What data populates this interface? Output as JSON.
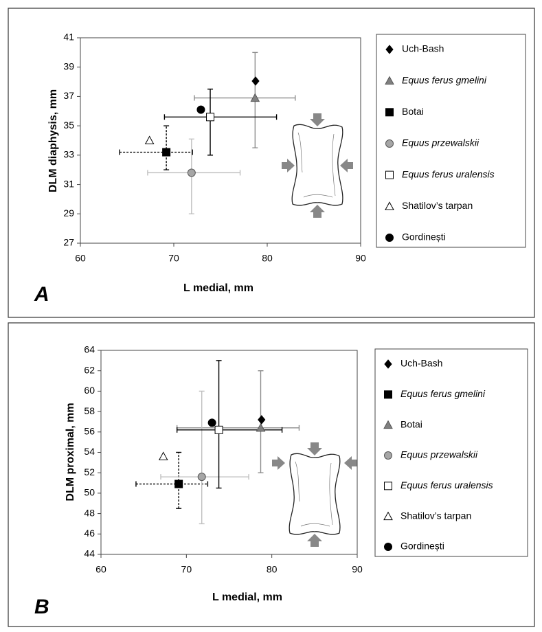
{
  "chart_data": [
    {
      "type": "scatter",
      "panel_label": "A",
      "xlabel": "L medial, mm",
      "ylabel": "DLM diaphysis, mm",
      "xlim": [
        60,
        90
      ],
      "xticks": [
        60,
        70,
        80,
        90
      ],
      "ylim": [
        27,
        41
      ],
      "yticks": [
        27,
        29,
        31,
        33,
        35,
        37,
        39,
        41
      ],
      "series": [
        {
          "name": "Uch-Bash",
          "marker": "diamond",
          "color": "#000000",
          "x": [
            78.75
          ],
          "values": [
            38.05
          ]
        },
        {
          "name": "Equus ferus gmelini",
          "italic": true,
          "marker": "triangle",
          "color": "#808080",
          "x": [
            78.7
          ],
          "values": [
            36.9
          ],
          "x_range": [
            72.2,
            83.0
          ],
          "y_range": [
            33.5,
            40.0
          ],
          "error_color": "#8c8c8c"
        },
        {
          "name": "Botai",
          "marker": "square",
          "color": "#000000",
          "x": [
            69.2
          ],
          "values": [
            33.2
          ],
          "x_range": [
            64.2,
            72.0
          ],
          "y_range": [
            32.0,
            35.0
          ],
          "error_color": "#000000",
          "error_dash": true
        },
        {
          "name": "Equus przewalskii",
          "italic": true,
          "marker": "circle",
          "color": "#a6a6a6",
          "x": [
            71.9
          ],
          "values": [
            31.8
          ],
          "x_range": [
            67.2,
            77.1
          ],
          "y_range": [
            29.0,
            34.1
          ],
          "error_color": "#bfbfbf"
        },
        {
          "name": "Equus ferus uralensis",
          "italic": true,
          "marker": "square",
          "color": "#ffffff",
          "x": [
            73.9
          ],
          "values": [
            35.6
          ],
          "x_range": [
            69.0,
            81.0
          ],
          "y_range": [
            33.0,
            37.5
          ],
          "error_color": "#000000"
        },
        {
          "name": "Shatilov’s tarpan",
          "marker": "triangle",
          "color": "#ffffff",
          "x": [
            67.4
          ],
          "values": [
            34.0
          ]
        },
        {
          "name": "Gordinești",
          "marker": "circle",
          "color": "#000000",
          "x": [
            72.9
          ],
          "values": [
            36.1
          ]
        }
      ]
    },
    {
      "type": "scatter",
      "panel_label": "B",
      "xlabel": "L medial, mm",
      "ylabel": "DLM proximal, mm",
      "xlim": [
        60,
        90
      ],
      "xticks": [
        60,
        70,
        80,
        90
      ],
      "ylim": [
        44,
        64
      ],
      "yticks": [
        44,
        46,
        48,
        50,
        52,
        54,
        56,
        58,
        60,
        62,
        64
      ],
      "series": [
        {
          "name": "Uch-Bash",
          "marker": "diamond",
          "color": "#000000",
          "x": [
            78.8
          ],
          "values": [
            57.2
          ]
        },
        {
          "name": "Equus ferus gmelini",
          "italic": true,
          "marker": "square",
          "color": "#000000",
          "x": [
            69.1
          ],
          "values": [
            50.9
          ],
          "x_range": [
            64.1,
            72.5
          ],
          "y_range": [
            48.5,
            54.0
          ],
          "error_color": "#000000",
          "error_dash": true
        },
        {
          "name": "Botai",
          "marker": "triangle",
          "color": "#808080",
          "x": [
            78.7
          ],
          "values": [
            56.4
          ],
          "x_range": [
            68.9,
            83.2
          ],
          "y_range": [
            52.0,
            62.0
          ],
          "error_color": "#8c8c8c"
        },
        {
          "name": "Equus przewalskii",
          "italic": true,
          "marker": "circle",
          "color": "#a6a6a6",
          "x": [
            71.8
          ],
          "values": [
            51.6
          ],
          "x_range": [
            67.0,
            77.3
          ],
          "y_range": [
            47.0,
            60.0
          ],
          "error_color": "#bfbfbf"
        },
        {
          "name": "Equus ferus uralensis",
          "italic": true,
          "marker": "square",
          "color": "#ffffff",
          "x": [
            73.8
          ],
          "values": [
            56.2
          ],
          "x_range": [
            68.9,
            81.2
          ],
          "y_range": [
            50.5,
            63.0
          ],
          "error_color": "#000000"
        },
        {
          "name": "Shatilov’s tarpan",
          "marker": "triangle",
          "color": "#ffffff",
          "x": [
            67.3
          ],
          "values": [
            53.6
          ]
        },
        {
          "name": "Gordinești",
          "marker": "circle",
          "color": "#000000",
          "x": [
            73.0
          ],
          "values": [
            56.9
          ]
        }
      ]
    }
  ]
}
